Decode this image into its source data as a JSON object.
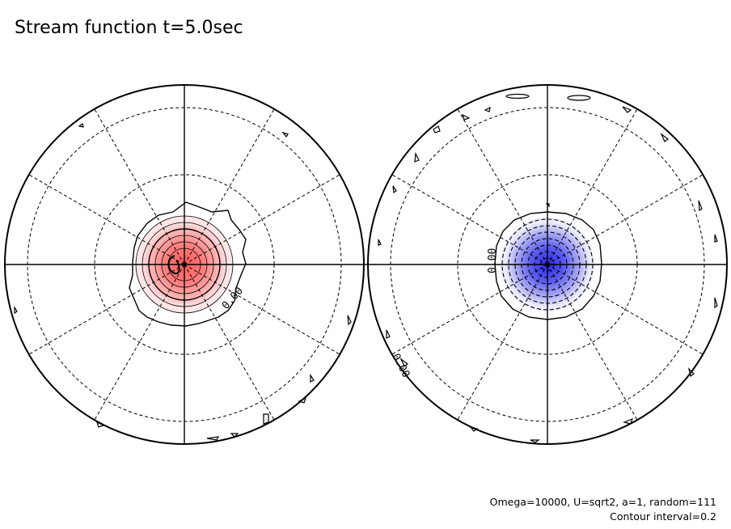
{
  "title": "Stream function t=5.0sec",
  "panels": [
    {
      "contour_label": "0.00",
      "anomaly_color": "#ff6f6f",
      "anomaly_sign": "positive"
    },
    {
      "contour_label": "0.00",
      "contour_label_edge": "0.00",
      "anomaly_color": "#4a4aee",
      "anomaly_sign": "negative"
    }
  ],
  "footer": {
    "params": "Omega=10000, U=sqrt2, a=1, random=111",
    "interval": "Contour interval=0.2"
  },
  "colors": {
    "positive": "#ff6f6f",
    "negative": "#4a4aee",
    "lines": "#000000"
  }
}
